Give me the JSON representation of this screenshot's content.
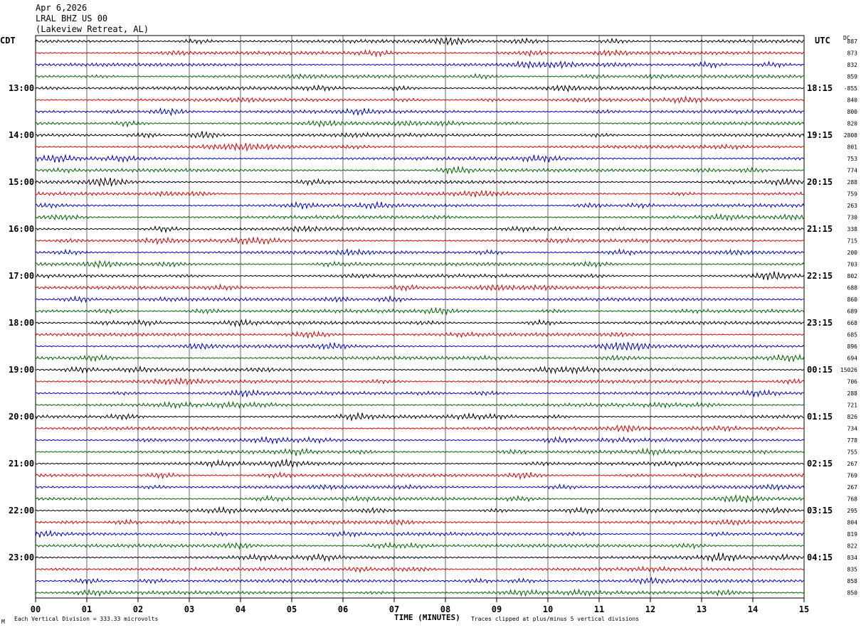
{
  "header": {
    "date": "Apr 6,2026",
    "station": "LRAL BHZ US 00",
    "location": "(Lakeview Retreat, AL)"
  },
  "left_timezone": "CDT",
  "right_timezone": "UTC",
  "dc_label": "DC",
  "footer": {
    "scale": "Each Vertical Division =  333.33 microvolts",
    "clip": "Traces clipped at plus/minus 5 vertical divisions",
    "corner_mark": "M"
  },
  "colors": {
    "trace_cycle": [
      "#000000",
      "#dd0000",
      "#0000cc",
      "#006400"
    ],
    "grid": "#000000",
    "background": "#ffffff"
  },
  "chart_data": {
    "type": "line",
    "title": "",
    "xlabel": "TIME (MINUTES)",
    "xlim": [
      0,
      15
    ],
    "x_ticks": [
      "00",
      "01",
      "02",
      "03",
      "04",
      "05",
      "06",
      "07",
      "08",
      "09",
      "10",
      "11",
      "12",
      "13",
      "14",
      "15"
    ],
    "left_hour_labels": [
      "13:00",
      "14:00",
      "15:00",
      "16:00",
      "17:00",
      "18:00",
      "19:00",
      "20:00",
      "21:00",
      "22:00",
      "23:00"
    ],
    "right_hour_labels": [
      "18:15",
      "19:15",
      "20:15",
      "21:15",
      "22:15",
      "23:15",
      "00:15",
      "01:15",
      "02:15",
      "03:15",
      "04:15"
    ],
    "traces_per_hour": 4,
    "trace_count": 48,
    "dc_offsets": [
      "887",
      "873",
      "832",
      "859",
      "-855",
      "840",
      "800",
      "820",
      "2808",
      "801",
      "753",
      "774",
      "288",
      "759",
      "263",
      "730",
      "338",
      "715",
      "200",
      "703",
      "802",
      "688",
      "860",
      "689",
      "668",
      "685",
      "896",
      "694",
      "15026",
      "706",
      "288",
      "721",
      "826",
      "734",
      "778",
      "755",
      "267",
      "769",
      "267",
      "768",
      "295",
      "804",
      "819",
      "822",
      "834",
      "835",
      "858",
      "850"
    ]
  }
}
